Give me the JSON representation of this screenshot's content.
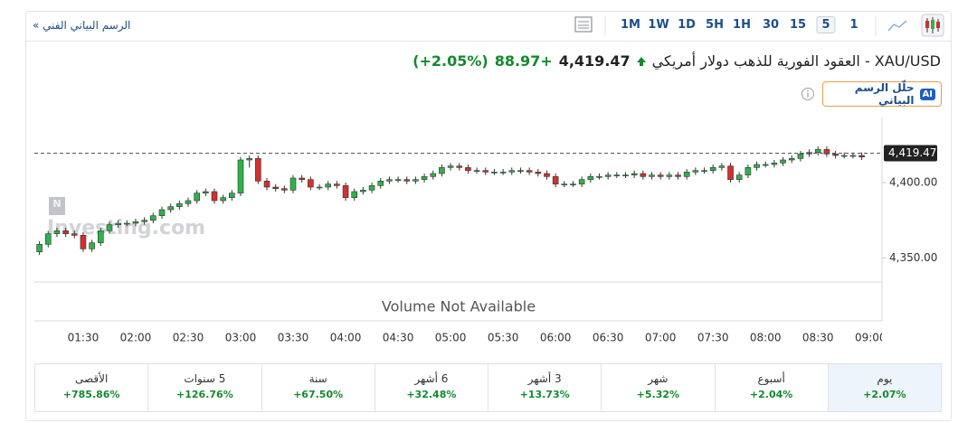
{
  "header": {
    "title": "الرسم البياني الفني",
    "arrow": "»"
  },
  "toolbar": {
    "timeframes": [
      "1M",
      "1W",
      "1D",
      "5H",
      "1H",
      "30",
      "15",
      "5",
      "1"
    ]
  },
  "quote": {
    "name": "XAU/USD - العقود الفورية للذهب دولار أمريكي",
    "price": "4,419.47",
    "change": "+88.97",
    "change_pct": "(+2.05%)"
  },
  "ai_button": {
    "badge": "AI",
    "label": "حلّل الرسم البياني"
  },
  "chart_data": {
    "type": "candlestick",
    "watermark": "Investing.com",
    "volume_note": "Volume Not Available",
    "up_color": "#2fb14a",
    "down_color": "#d0312d",
    "categories": [
      null,
      null,
      null,
      null,
      null,
      "01:30",
      null,
      null,
      null,
      null,
      null,
      "02:00",
      null,
      null,
      null,
      null,
      null,
      "02:30",
      null,
      null,
      null,
      null,
      null,
      "03:00",
      null,
      null,
      null,
      null,
      null,
      "03:30",
      null,
      null,
      null,
      null,
      null,
      "04:00",
      null,
      null,
      null,
      null,
      null,
      "04:30",
      null,
      null,
      null,
      null,
      null,
      "05:00",
      null,
      null,
      null,
      null,
      null,
      "05:30",
      null,
      null,
      null,
      null,
      null,
      "06:00",
      null,
      null,
      null,
      null,
      null,
      "06:30",
      null,
      null,
      null,
      null,
      null,
      "07:00",
      null,
      null,
      null,
      null,
      null,
      "07:30",
      null,
      null,
      null,
      null,
      null,
      "08:00",
      null,
      null,
      null,
      null,
      null,
      "08:30",
      null,
      null,
      null,
      null,
      null,
      "09:00"
    ],
    "open": [
      4354,
      4359,
      4366,
      4368,
      4366,
      4365,
      4356,
      4360,
      4368,
      4372,
      4373,
      4373,
      4374,
      4375,
      4378,
      4382,
      4384,
      4386,
      4388,
      4393,
      4394,
      4388,
      4390,
      4393,
      4415,
      4416,
      4401,
      4397,
      4396,
      4395,
      4403,
      4402,
      4397,
      4397,
      4399,
      4398,
      4390,
      4394,
      4395,
      4398,
      4401,
      4402,
      4402,
      4401,
      4402,
      4404,
      4406,
      4410,
      4411,
      4410,
      4408,
      4408,
      4407,
      4407,
      4407,
      4408,
      4408,
      4407,
      4406,
      4404,
      4399,
      4399,
      4399,
      4402,
      4404,
      4404,
      4405,
      4405,
      4405,
      4406,
      4404,
      4405,
      4404,
      4405,
      4404,
      4407,
      4408,
      4408,
      4410,
      4411,
      4402,
      4405,
      4410,
      4412,
      4412,
      4413,
      4415,
      4416,
      4419,
      4420,
      4422,
      4419,
      4418,
      4418,
      4418,
      null
    ],
    "high": [
      4361,
      4368,
      4370,
      4370,
      4368,
      4367,
      4362,
      4370,
      4374,
      4375,
      4375,
      4376,
      4377,
      4380,
      4384,
      4386,
      4388,
      4390,
      4395,
      4396,
      4396,
      4392,
      4395,
      4417,
      4418,
      4418,
      4403,
      4399,
      4398,
      4405,
      4405,
      4404,
      4399,
      4401,
      4401,
      4400,
      4396,
      4397,
      4400,
      4403,
      4404,
      4404,
      4404,
      4404,
      4406,
      4408,
      4412,
      4413,
      4413,
      4412,
      4410,
      4410,
      4409,
      4409,
      4410,
      4410,
      4410,
      4409,
      4408,
      4406,
      4401,
      4401,
      4404,
      4406,
      4406,
      4407,
      4407,
      4407,
      4408,
      4408,
      4407,
      4407,
      4407,
      4407,
      4409,
      4410,
      4410,
      4412,
      4413,
      4413,
      4407,
      4412,
      4414,
      4414,
      4415,
      4417,
      4418,
      4421,
      4422,
      4424,
      4424,
      4421,
      4420,
      4420,
      4420,
      null
    ],
    "low": [
      4352,
      4357,
      4364,
      4364,
      4363,
      4354,
      4354,
      4358,
      4366,
      4370,
      4371,
      4371,
      4372,
      4373,
      4376,
      4380,
      4382,
      4384,
      4386,
      4391,
      4386,
      4386,
      4388,
      4391,
      4410,
      4399,
      4395,
      4394,
      4393,
      4393,
      4400,
      4395,
      4395,
      4395,
      4396,
      4388,
      4388,
      4392,
      4393,
      4396,
      4399,
      4400,
      4399,
      4399,
      4400,
      4402,
      4404,
      4408,
      4408,
      4406,
      4406,
      4405,
      4405,
      4405,
      4405,
      4406,
      4405,
      4404,
      4402,
      4397,
      4397,
      4397,
      4397,
      4400,
      4402,
      4402,
      4403,
      4403,
      4403,
      4402,
      4402,
      4402,
      4402,
      4402,
      4402,
      4405,
      4406,
      4406,
      4408,
      4400,
      4400,
      4403,
      4408,
      4410,
      4410,
      4411,
      4413,
      4414,
      4417,
      4418,
      4417,
      4416,
      4416,
      4416,
      4415,
      null
    ],
    "close": [
      4359,
      4366,
      4368,
      4366,
      4365,
      4356,
      4360,
      4368,
      4372,
      4373,
      4373,
      4374,
      4375,
      4378,
      4382,
      4384,
      4386,
      4388,
      4393,
      4394,
      4388,
      4390,
      4393,
      4415,
      4416,
      4401,
      4397,
      4396,
      4395,
      4403,
      4402,
      4397,
      4397,
      4399,
      4398,
      4390,
      4394,
      4395,
      4398,
      4401,
      4402,
      4402,
      4401,
      4402,
      4404,
      4406,
      4410,
      4411,
      4410,
      4408,
      4408,
      4407,
      4407,
      4407,
      4408,
      4408,
      4407,
      4406,
      4404,
      4399,
      4399,
      4399,
      4402,
      4404,
      4404,
      4405,
      4405,
      4405,
      4406,
      4404,
      4405,
      4404,
      4405,
      4404,
      4407,
      4408,
      4408,
      4410,
      4411,
      4402,
      4405,
      4410,
      4412,
      4412,
      4413,
      4415,
      4416,
      4419,
      4420,
      4422,
      4419,
      4418,
      4418,
      4418,
      4417,
      null
    ],
    "ylim": [
      4334,
      4439
    ],
    "yticks": [
      {
        "value": 4400,
        "label": "4,400.00"
      },
      {
        "value": 4350,
        "label": "4,350.00"
      }
    ],
    "last_price": {
      "value": 4419.47,
      "label": "4,419.47"
    }
  },
  "performance": [
    {
      "label": "يوم",
      "value": "+2.07%"
    },
    {
      "label": "أسبوع",
      "value": "+2.04%"
    },
    {
      "label": "شهر",
      "value": "+5.32%"
    },
    {
      "label": "3 أشهر",
      "value": "+13.73%"
    },
    {
      "label": "6 أشهر",
      "value": "+32.48%"
    },
    {
      "label": "سنة",
      "value": "+67.50%"
    },
    {
      "label": "5 سنوات",
      "value": "+126.76%"
    },
    {
      "label": "الأقصى",
      "value": "+785.86%"
    }
  ]
}
